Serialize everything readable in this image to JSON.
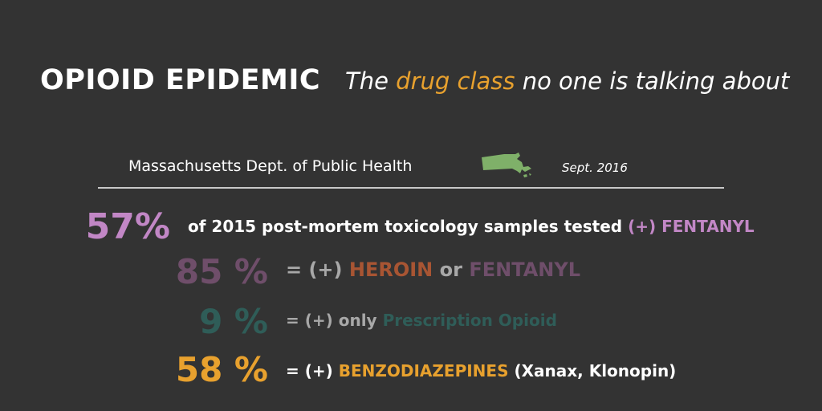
{
  "header": {
    "title": "OPIOID EPIDEMIC",
    "subtitle_pre": "The ",
    "subtitle_accent": "drug class",
    "subtitle_post": " no one is talking about"
  },
  "source": {
    "org": "Massachusetts Dept. of Public Health",
    "date": "Sept. 2016",
    "map_icon": "massachusetts-map-icon"
  },
  "stats": [
    {
      "pct": "57%",
      "text": "of 2015 post-mortem toxicology samples tested ",
      "highlight": "(+) FENTANYL"
    },
    {
      "pct": "85 %",
      "pre": "= (+) ",
      "highlight1": "HEROIN",
      "mid": " or ",
      "highlight2": "FENTANYL"
    },
    {
      "pct": "9 %",
      "pre": "= (+) only ",
      "highlight": "Prescription Opioid"
    },
    {
      "pct": "58 %",
      "pre": "= (+) ",
      "highlight": "BENZODIAZEPINES",
      "post": " (Xanax, Klonopin)"
    }
  ],
  "colors": {
    "background": "#333333",
    "fentanyl": "#c287c6",
    "fentanyl_dim": "#6f4e6a",
    "heroin": "#a85533",
    "prescription": "#2f5d58",
    "benzo": "#e8a12e",
    "map": "#7fb069"
  }
}
